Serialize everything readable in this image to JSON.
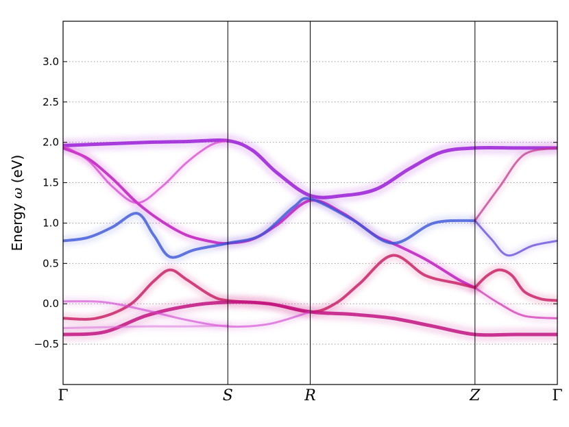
{
  "chart_data": {
    "type": "line",
    "title": "",
    "ylabel_parts": [
      "Energy ",
      "ω",
      " (eV)"
    ],
    "ylim": [
      -1.0,
      3.5
    ],
    "grid": "horizontal-dotted",
    "yticks": [
      -0.5,
      0.0,
      0.5,
      1.0,
      1.5,
      2.0,
      2.5,
      3.0
    ],
    "ytick_labels": [
      "−0.5",
      "0.0",
      "0.5",
      "1.0",
      "1.5",
      "2.0",
      "2.5",
      "3.0"
    ],
    "xlim": [
      0,
      6
    ],
    "kpoints": [
      {
        "label": "Γ",
        "x": 0.0,
        "italic": false
      },
      {
        "label": "S",
        "x": 2.0,
        "italic": true
      },
      {
        "label": "R",
        "x": 3.0,
        "italic": true
      },
      {
        "label": "Z",
        "x": 5.0,
        "italic": true
      },
      {
        "label": "Γ",
        "x": 6.0,
        "italic": false
      }
    ],
    "series": [
      {
        "color": "#9b1fd6",
        "width": 5,
        "opacity": 0.85,
        "x": [
          0,
          0.5,
          1.0,
          1.5,
          2.0,
          2.3,
          2.6,
          3.0,
          3.4,
          3.8,
          4.2,
          4.6,
          5.0,
          5.5,
          6.0
        ],
        "y": [
          1.96,
          1.98,
          2.0,
          2.01,
          2.02,
          1.9,
          1.62,
          1.34,
          1.34,
          1.42,
          1.67,
          1.88,
          1.93,
          1.93,
          1.93
        ]
      },
      {
        "color": "#c01cc0",
        "width": 4,
        "opacity": 0.85,
        "x": [
          0,
          0.3,
          0.6,
          0.9,
          1.2,
          1.5,
          1.8,
          2.0,
          2.3,
          2.6,
          3.0,
          3.4,
          3.8,
          4.0,
          4.4,
          4.8,
          5.0
        ],
        "y": [
          1.93,
          1.8,
          1.55,
          1.25,
          1.02,
          0.85,
          0.77,
          0.75,
          0.8,
          0.98,
          1.28,
          1.12,
          0.84,
          0.75,
          0.55,
          0.3,
          0.2
        ]
      },
      {
        "color": "#d63ad0",
        "width": 3,
        "opacity": 0.7,
        "x": [
          0,
          0.3,
          0.6,
          0.9,
          1.2,
          1.5,
          1.8,
          2.0
        ],
        "y": [
          1.96,
          1.78,
          1.45,
          1.25,
          1.45,
          1.75,
          1.97,
          2.02
        ]
      },
      {
        "color": "#3b55d8",
        "width": 4,
        "opacity": 0.8,
        "x": [
          0,
          0.3,
          0.6,
          0.9,
          1.1,
          1.3,
          1.6,
          2.0,
          2.4,
          2.8,
          3.0,
          3.5,
          4.0,
          4.5,
          5.0
        ],
        "y": [
          0.78,
          0.82,
          0.95,
          1.12,
          0.85,
          0.58,
          0.67,
          0.75,
          0.85,
          1.2,
          1.3,
          1.05,
          0.75,
          1.0,
          1.03
        ]
      },
      {
        "color": "#5a3ad8",
        "width": 3,
        "opacity": 0.7,
        "x": [
          5.0,
          5.2,
          5.4,
          5.7,
          6.0
        ],
        "y": [
          1.03,
          0.8,
          0.6,
          0.72,
          0.78
        ]
      },
      {
        "color": "#c0308a",
        "width": 3,
        "opacity": 0.7,
        "x": [
          5.0,
          5.3,
          5.6,
          6.0
        ],
        "y": [
          1.03,
          1.45,
          1.85,
          1.93
        ]
      },
      {
        "color": "#c81860",
        "width": 4,
        "opacity": 0.8,
        "x": [
          0,
          0.4,
          0.8,
          1.1,
          1.3,
          1.5,
          1.8,
          2.0,
          2.5,
          3.0,
          3.3,
          3.6,
          4.0,
          4.4,
          4.8,
          5.0
        ],
        "y": [
          -0.18,
          -0.18,
          -0.02,
          0.28,
          0.42,
          0.3,
          0.1,
          0.04,
          0.0,
          -0.1,
          0.0,
          0.25,
          0.6,
          0.35,
          0.25,
          0.2
        ]
      },
      {
        "color": "#c81860",
        "width": 4,
        "opacity": 0.8,
        "x": [
          5.0,
          5.15,
          5.3,
          5.45,
          5.6,
          5.8,
          6.0
        ],
        "y": [
          0.2,
          0.35,
          0.42,
          0.35,
          0.15,
          0.06,
          0.04
        ]
      },
      {
        "color": "#d02cb0",
        "width": 3,
        "opacity": 0.7,
        "x": [
          5.0,
          5.3,
          5.6,
          6.0
        ],
        "y": [
          0.2,
          0.0,
          -0.15,
          -0.18
        ]
      },
      {
        "color": "#c21480",
        "width": 5,
        "opacity": 0.85,
        "x": [
          0,
          0.5,
          1.0,
          1.5,
          2.0,
          2.5,
          3.0,
          3.5,
          4.0,
          4.5,
          5.0,
          5.5,
          6.0
        ],
        "y": [
          -0.38,
          -0.35,
          -0.15,
          -0.03,
          0.02,
          0.0,
          -0.1,
          -0.13,
          -0.18,
          -0.28,
          -0.38,
          -0.38,
          -0.38
        ]
      },
      {
        "color": "#d040d0",
        "width": 3,
        "opacity": 0.6,
        "x": [
          0,
          0.5,
          1.0,
          1.5,
          2.0,
          2.5,
          3.0
        ],
        "y": [
          0.03,
          0.02,
          -0.08,
          -0.2,
          -0.28,
          -0.25,
          -0.1
        ]
      },
      {
        "color": "#d86ad8",
        "width": 3,
        "opacity": 0.5,
        "x": [
          0,
          0.5,
          1.0,
          1.5,
          2.0
        ],
        "y": [
          -0.3,
          -0.29,
          -0.28,
          -0.28,
          -0.27
        ]
      }
    ]
  }
}
